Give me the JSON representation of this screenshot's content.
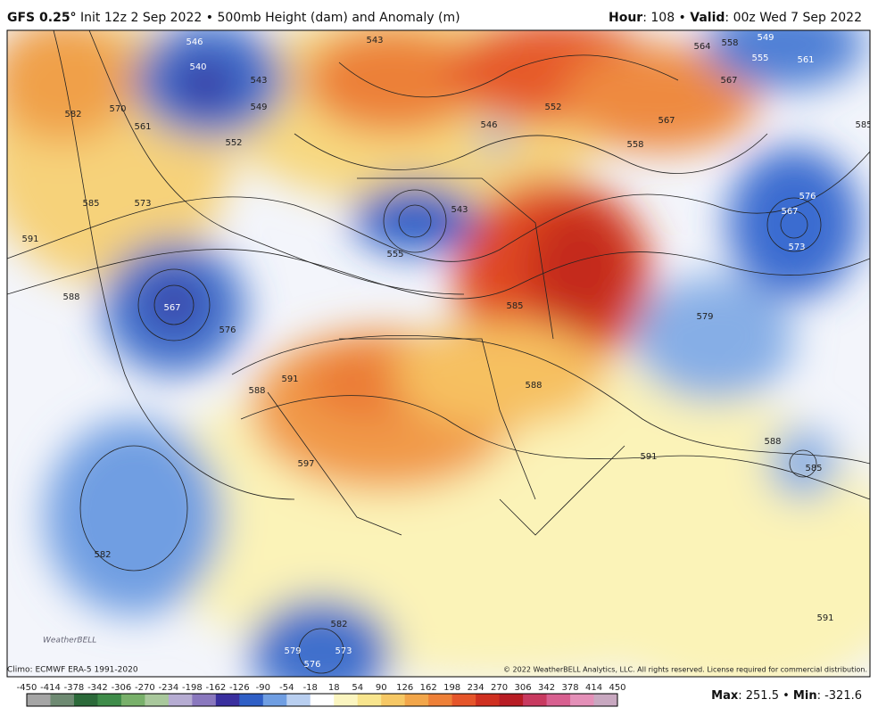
{
  "header": {
    "model": "GFS 0.25°",
    "title": "Init 12z 2 Sep 2022 • 500mb Height (dam) and Anomaly (m)",
    "hour_label": "Hour",
    "hour_text": ": 108 •",
    "valid_label": "Valid",
    "valid_text": ": 00z Wed 7 Sep 2022"
  },
  "map": {
    "contour_labels": [
      546,
      540,
      543,
      549,
      552,
      582,
      570,
      561,
      585,
      573,
      591,
      588,
      567,
      576,
      543,
      555,
      585,
      591,
      588,
      597,
      588,
      582,
      591,
      588,
      585,
      576,
      567,
      573,
      579,
      567,
      564,
      558,
      549,
      555,
      561,
      567,
      585,
      582,
      573,
      576,
      579,
      591,
      546,
      543,
      552,
      558
    ],
    "logo": "WeatherBELL"
  },
  "footer": {
    "climo": "Climo: ECMWF ERA-5 1991-2020",
    "copyright": "© 2022 WeatherBELL Analytics, LLC. All rights reserved. License required for commercial distribution.",
    "max_label": "Max",
    "max_text": ": 251.5 •",
    "min_label": "Min",
    "min_text": ": -321.6"
  },
  "colorbar": {
    "ticks": [
      -450,
      -414,
      -378,
      -342,
      -306,
      -270,
      -234,
      -198,
      -162,
      -126,
      -90,
      -54,
      -18,
      18,
      54,
      90,
      126,
      162,
      198,
      234,
      270,
      306,
      342,
      378,
      414,
      450
    ],
    "colors": [
      "#a5a5a5",
      "#6e8a72",
      "#2c6a3a",
      "#3f8c4a",
      "#78b06a",
      "#a9c89c",
      "#b6acd2",
      "#8a78be",
      "#3a2f9e",
      "#2f5fc6",
      "#6f9ee2",
      "#b9cff0",
      "#ffffff",
      "#fbf5c0",
      "#f8e58e",
      "#f6c865",
      "#f2a64a",
      "#ee8038",
      "#e5552a",
      "#cf3020",
      "#b81c24",
      "#c83a60",
      "#d86090",
      "#e490b8",
      "#c8a8c0"
    ]
  }
}
